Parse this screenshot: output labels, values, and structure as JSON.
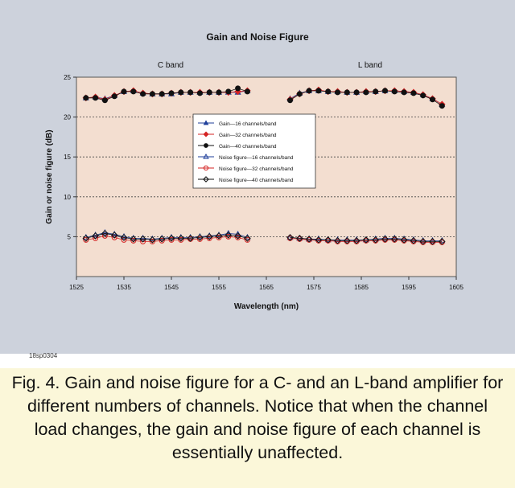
{
  "figure_id": "18sp0304",
  "caption": "Fig. 4. Gain and noise figure for a C- and an L-band amplifier for different numbers of channels. Notice that when the channel load changes, the gain and noise figure of each channel is essentially unaffected.",
  "colors": {
    "panel_bg": "#cdd2dc",
    "plot_bg": "#f3ded0",
    "caption_bg": "#fbf7d9",
    "blue": "#1f3f9a",
    "red": "#d42323",
    "black": "#111111"
  },
  "chart_data": {
    "type": "scatter",
    "title": "Gain and Noise Figure",
    "band_labels": [
      "C band",
      "L band"
    ],
    "xlabel": "Wavelength (nm)",
    "ylabel": "Gain or noise figure (dB)",
    "xlim": [
      1525,
      1605
    ],
    "ylim": [
      0,
      25
    ],
    "xticks": [
      "1525",
      "1535",
      "1545",
      "1555",
      "1565",
      "1575",
      "1585",
      "1595",
      "1605"
    ],
    "yticks": [
      "5",
      "10",
      "15",
      "20",
      "25"
    ],
    "grid": "horizontal-dashed",
    "legend_position": "center-left",
    "series": [
      {
        "name": "Gain—16 channels/band",
        "color": "#1f3f9a",
        "marker": "triangle",
        "filled": true,
        "kind": "gain",
        "x": [
          1527,
          1529,
          1531,
          1533,
          1535,
          1537,
          1539,
          1541,
          1543,
          1545,
          1547,
          1549,
          1551,
          1553,
          1555,
          1557,
          1559,
          1561,
          1570,
          1572,
          1574,
          1576,
          1578,
          1580,
          1582,
          1584,
          1586,
          1588,
          1590,
          1592,
          1594,
          1596,
          1598,
          1600,
          1602
        ],
        "y": [
          22.4,
          22.5,
          22.3,
          22.7,
          23.2,
          23.3,
          23.0,
          22.9,
          22.9,
          22.9,
          23.1,
          23.1,
          23.1,
          23.1,
          23.1,
          23.1,
          23.1,
          23.3,
          22.3,
          23.0,
          23.3,
          23.3,
          23.2,
          23.2,
          23.1,
          23.1,
          23.2,
          23.2,
          23.3,
          23.3,
          23.2,
          23.1,
          22.8,
          22.3,
          21.6
        ]
      },
      {
        "name": "Gain—32 channels/band",
        "color": "#d42323",
        "marker": "diamond",
        "filled": true,
        "kind": "gain",
        "x": [
          1527,
          1529,
          1531,
          1533,
          1535,
          1537,
          1539,
          1541,
          1543,
          1545,
          1547,
          1549,
          1551,
          1553,
          1555,
          1557,
          1559,
          1561,
          1570,
          1572,
          1574,
          1576,
          1578,
          1580,
          1582,
          1584,
          1586,
          1588,
          1590,
          1592,
          1594,
          1596,
          1598,
          1600,
          1602
        ],
        "y": [
          22.4,
          22.5,
          22.2,
          22.7,
          23.2,
          23.3,
          23.0,
          22.9,
          22.9,
          23.0,
          23.1,
          23.1,
          23.1,
          23.1,
          23.1,
          23.1,
          23.2,
          23.3,
          22.2,
          22.9,
          23.3,
          23.4,
          23.2,
          23.2,
          23.1,
          23.1,
          23.2,
          23.2,
          23.3,
          23.3,
          23.2,
          23.1,
          22.8,
          22.3,
          21.6
        ]
      },
      {
        "name": "Gain—40 channels/band",
        "color": "#111111",
        "marker": "circle",
        "filled": true,
        "kind": "gain",
        "x": [
          1527,
          1529,
          1531,
          1533,
          1535,
          1537,
          1539,
          1541,
          1543,
          1545,
          1547,
          1549,
          1551,
          1553,
          1555,
          1557,
          1559,
          1561,
          1570,
          1572,
          1574,
          1576,
          1578,
          1580,
          1582,
          1584,
          1586,
          1588,
          1590,
          1592,
          1594,
          1596,
          1598,
          1600,
          1602
        ],
        "y": [
          22.4,
          22.4,
          22.1,
          22.6,
          23.2,
          23.2,
          22.9,
          22.9,
          22.9,
          23.0,
          23.1,
          23.1,
          23.0,
          23.1,
          23.1,
          23.2,
          23.6,
          23.2,
          22.1,
          22.9,
          23.3,
          23.3,
          23.2,
          23.1,
          23.1,
          23.1,
          23.1,
          23.2,
          23.3,
          23.2,
          23.1,
          23.0,
          22.7,
          22.2,
          21.4
        ]
      },
      {
        "name": "Noise figure—16 channels/band",
        "color": "#1f3f9a",
        "marker": "triangle",
        "filled": false,
        "kind": "noise",
        "x": [
          1527,
          1529,
          1531,
          1533,
          1535,
          1537,
          1539,
          1541,
          1543,
          1545,
          1547,
          1549,
          1551,
          1553,
          1555,
          1557,
          1559,
          1561,
          1570,
          1572,
          1574,
          1576,
          1578,
          1580,
          1582,
          1584,
          1586,
          1588,
          1590,
          1592,
          1594,
          1596,
          1598,
          1600,
          1602
        ],
        "y": [
          4.9,
          5.2,
          5.5,
          5.3,
          5.0,
          4.8,
          4.8,
          4.7,
          4.8,
          4.9,
          4.9,
          4.9,
          5.0,
          5.1,
          5.2,
          5.4,
          5.3,
          4.9,
          4.9,
          4.8,
          4.7,
          4.7,
          4.6,
          4.6,
          4.6,
          4.6,
          4.6,
          4.7,
          4.8,
          4.8,
          4.7,
          4.6,
          4.5,
          4.5,
          4.5
        ]
      },
      {
        "name": "Noise figure—32 channels/band",
        "color": "#d42323",
        "marker": "circle",
        "filled": false,
        "kind": "noise",
        "x": [
          1527,
          1529,
          1531,
          1533,
          1535,
          1537,
          1539,
          1541,
          1543,
          1545,
          1547,
          1549,
          1551,
          1553,
          1555,
          1557,
          1559,
          1561,
          1570,
          1572,
          1574,
          1576,
          1578,
          1580,
          1582,
          1584,
          1586,
          1588,
          1590,
          1592,
          1594,
          1596,
          1598,
          1600,
          1602
        ],
        "y": [
          4.6,
          4.8,
          5.1,
          4.9,
          4.6,
          4.5,
          4.4,
          4.4,
          4.5,
          4.6,
          4.6,
          4.7,
          4.7,
          4.8,
          4.9,
          5.0,
          4.9,
          4.6,
          4.8,
          4.7,
          4.6,
          4.5,
          4.5,
          4.4,
          4.4,
          4.4,
          4.5,
          4.5,
          4.6,
          4.6,
          4.5,
          4.4,
          4.3,
          4.3,
          4.3
        ]
      },
      {
        "name": "Noise figure—40 channels/band",
        "color": "#111111",
        "marker": "diamond",
        "filled": false,
        "kind": "noise",
        "x": [
          1527,
          1529,
          1531,
          1533,
          1535,
          1537,
          1539,
          1541,
          1543,
          1545,
          1547,
          1549,
          1551,
          1553,
          1555,
          1557,
          1559,
          1561,
          1570,
          1572,
          1574,
          1576,
          1578,
          1580,
          1582,
          1584,
          1586,
          1588,
          1590,
          1592,
          1594,
          1596,
          1598,
          1600,
          1602
        ],
        "y": [
          4.8,
          5.1,
          5.4,
          5.2,
          4.9,
          4.7,
          4.7,
          4.6,
          4.7,
          4.8,
          4.8,
          4.8,
          4.9,
          5.0,
          5.1,
          5.2,
          5.1,
          4.8,
          4.9,
          4.8,
          4.7,
          4.6,
          4.6,
          4.5,
          4.5,
          4.5,
          4.6,
          4.6,
          4.7,
          4.7,
          4.6,
          4.5,
          4.4,
          4.4,
          4.4
        ]
      }
    ]
  }
}
